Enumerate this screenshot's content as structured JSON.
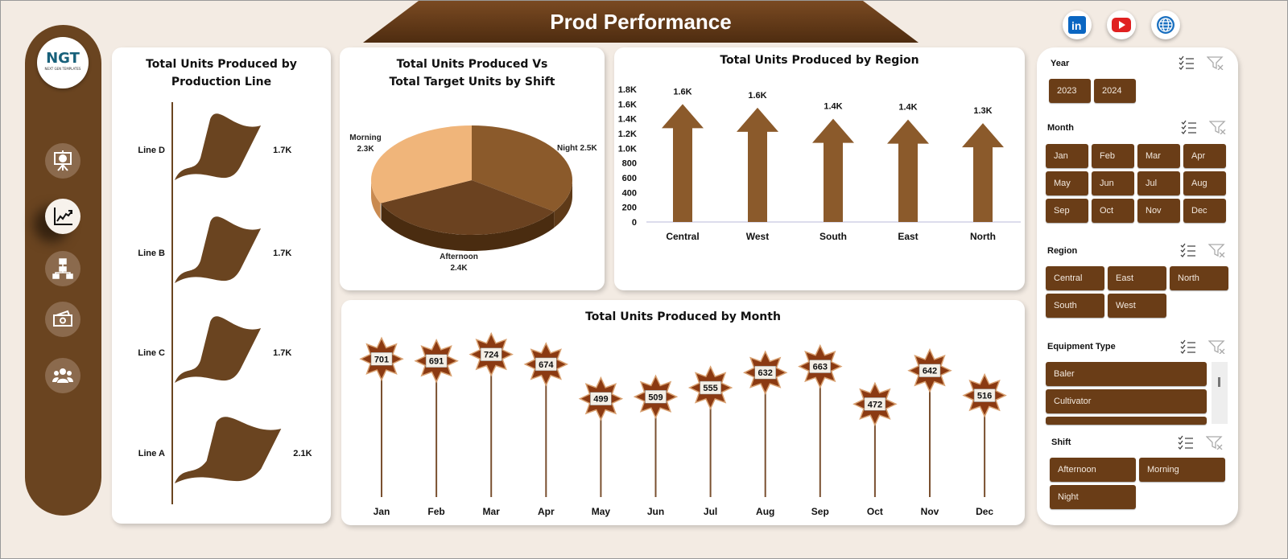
{
  "header": {
    "title": "Prod Performance"
  },
  "social": [
    {
      "icon": "linkedin-icon",
      "color": "#0a66c2"
    },
    {
      "icon": "youtube-icon",
      "color": "#e02020"
    },
    {
      "icon": "globe-icon",
      "color": "#1a70c0"
    }
  ],
  "sidebar": {
    "logo_text": "NGT",
    "logo_subtext": "NEXT GEN TEMPLATES",
    "items": [
      {
        "icon": "presentation-icon"
      },
      {
        "icon": "trend-chart-icon",
        "active": true
      },
      {
        "icon": "flowchart-icon"
      },
      {
        "icon": "money-icon"
      },
      {
        "icon": "users-icon"
      }
    ]
  },
  "colors": {
    "brown_dark": "#6a4420",
    "brown": "#8b5a2b",
    "slicer": "#6a3d17",
    "morning": "#f0b57a",
    "background": "#f3ebe3"
  },
  "chart_data": [
    {
      "id": "line",
      "type": "bar",
      "title": "Total Units Produced by Production Line",
      "categories": [
        "Line D",
        "Line B",
        "Line C",
        "Line A"
      ],
      "values": [
        1700,
        1700,
        1700,
        2100
      ],
      "labels": [
        "1.7K",
        "1.7K",
        "1.7K",
        "2.1K"
      ],
      "orientation": "horizontal",
      "marker": "flag"
    },
    {
      "id": "shift",
      "type": "pie",
      "title": "Total Units Produced Vs Total Target Units by Shift",
      "categories": [
        "Night",
        "Afternoon",
        "Morning"
      ],
      "values": [
        2500,
        2400,
        2300
      ],
      "labels": [
        "2.5K",
        "2.4K",
        "2.3K"
      ],
      "colors": [
        "#8b5a2b",
        "#6b4220",
        "#f0b57a"
      ],
      "style": "3d"
    },
    {
      "id": "region",
      "type": "bar",
      "title": "Total Units Produced by Region",
      "categories": [
        "Central",
        "West",
        "South",
        "East",
        "North"
      ],
      "values": [
        1600,
        1550,
        1400,
        1390,
        1340
      ],
      "labels": [
        "1.6K",
        "1.6K",
        "1.4K",
        "1.4K",
        "1.3K"
      ],
      "yticks": [
        "0",
        "200",
        "400",
        "600",
        "800",
        "1.0K",
        "1.2K",
        "1.4K",
        "1.6K",
        "1.8K"
      ],
      "ylim": [
        0,
        1800
      ],
      "marker": "arrow"
    },
    {
      "id": "month",
      "type": "line",
      "title": "Total Units Produced by Month",
      "categories": [
        "Jan",
        "Feb",
        "Mar",
        "Apr",
        "May",
        "Jun",
        "Jul",
        "Aug",
        "Sep",
        "Oct",
        "Nov",
        "Dec"
      ],
      "values": [
        701,
        691,
        724,
        674,
        499,
        509,
        555,
        632,
        663,
        472,
        642,
        516
      ],
      "marker": "star-lollipop"
    }
  ],
  "slicers": {
    "year": {
      "title": "Year",
      "items": [
        "2023",
        "2024"
      ]
    },
    "month": {
      "title": "Month",
      "items": [
        "Jan",
        "Feb",
        "Mar",
        "Apr",
        "May",
        "Jun",
        "Jul",
        "Aug",
        "Sep",
        "Oct",
        "Nov",
        "Dec"
      ]
    },
    "region": {
      "title": "Region",
      "items": [
        "Central",
        "East",
        "North",
        "South",
        "West"
      ]
    },
    "equipment": {
      "title": "Equipment Type",
      "items": [
        "Baler",
        "Cultivator",
        ""
      ]
    },
    "shift": {
      "title": "Shift",
      "items": [
        "Afternoon",
        "Morning",
        "Night"
      ]
    }
  }
}
